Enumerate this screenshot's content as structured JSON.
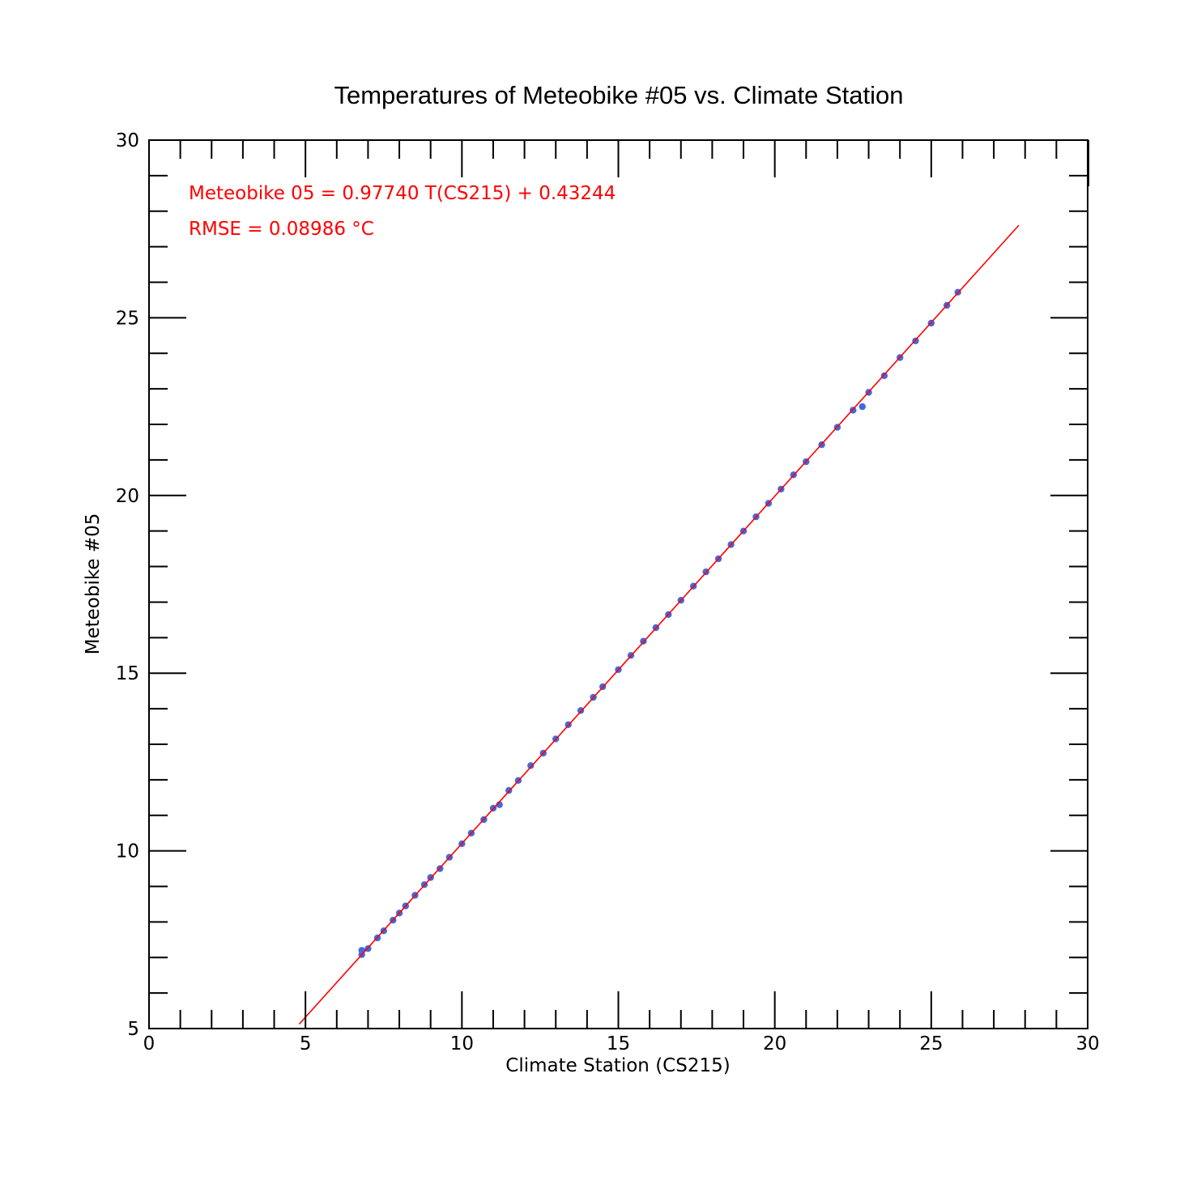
{
  "chart_data": {
    "type": "scatter",
    "title": "Temperatures of Meteobike #05 vs. Climate Station",
    "xlabel": "Climate Station (CS215)",
    "ylabel": "Meteobike #05",
    "xlim": [
      0,
      30
    ],
    "ylim": [
      5,
      30
    ],
    "x_major_ticks": [
      0,
      5,
      10,
      15,
      20,
      25,
      30
    ],
    "y_major_ticks": [
      5,
      10,
      15,
      20,
      25,
      30
    ],
    "x_tick_labels": [
      "0",
      "5",
      "10",
      "15",
      "20",
      "25",
      "30"
    ],
    "y_tick_labels": [
      "5",
      "10",
      "15",
      "20",
      "25",
      "30"
    ],
    "minor_tick_step": 1,
    "grid": false,
    "series": [
      {
        "kind": "scatter",
        "color": "#4169e1",
        "x_range": [
          6.8,
          25.85
        ],
        "points": [
          [
            6.8,
            7.08
          ],
          [
            6.8,
            7.2
          ],
          [
            7.0,
            7.25
          ],
          [
            7.3,
            7.55
          ],
          [
            7.5,
            7.75
          ],
          [
            7.8,
            8.05
          ],
          [
            8.0,
            8.25
          ],
          [
            8.2,
            8.45
          ],
          [
            8.5,
            8.75
          ],
          [
            8.8,
            9.05
          ],
          [
            9.0,
            9.25
          ],
          [
            9.3,
            9.5
          ],
          [
            9.6,
            9.82
          ],
          [
            10.0,
            10.2
          ],
          [
            10.3,
            10.5
          ],
          [
            10.7,
            10.88
          ],
          [
            11.0,
            11.2
          ],
          [
            11.2,
            11.3
          ],
          [
            11.5,
            11.7
          ],
          [
            11.8,
            11.98
          ],
          [
            12.2,
            12.4
          ],
          [
            12.6,
            12.75
          ],
          [
            13.0,
            13.15
          ],
          [
            13.4,
            13.55
          ],
          [
            13.8,
            13.95
          ],
          [
            14.2,
            14.32
          ],
          [
            14.5,
            14.62
          ],
          [
            15.0,
            15.1
          ],
          [
            15.4,
            15.5
          ],
          [
            15.8,
            15.9
          ],
          [
            16.2,
            16.28
          ],
          [
            16.6,
            16.65
          ],
          [
            17.0,
            17.05
          ],
          [
            17.4,
            17.45
          ],
          [
            17.8,
            17.85
          ],
          [
            18.2,
            18.22
          ],
          [
            18.6,
            18.62
          ],
          [
            19.0,
            19.0
          ],
          [
            19.4,
            19.4
          ],
          [
            19.8,
            19.78
          ],
          [
            20.2,
            20.18
          ],
          [
            20.6,
            20.58
          ],
          [
            21.0,
            20.95
          ],
          [
            21.5,
            21.43
          ],
          [
            22.0,
            21.92
          ],
          [
            22.5,
            22.4
          ],
          [
            22.8,
            22.5
          ],
          [
            23.0,
            22.9
          ],
          [
            23.5,
            23.37
          ],
          [
            24.0,
            23.88
          ],
          [
            24.5,
            24.35
          ],
          [
            25.0,
            24.85
          ],
          [
            25.5,
            25.35
          ],
          [
            25.85,
            25.72
          ]
        ]
      },
      {
        "kind": "line",
        "color": "#ff0000",
        "x_range": [
          4.8,
          27.8
        ],
        "slope": 0.9774,
        "intercept": 0.43244
      }
    ],
    "annotations": [
      "Meteobike 05 = 0.97740 T(CS215) + 0.43244",
      "RMSE = 0.08986 °C"
    ]
  }
}
